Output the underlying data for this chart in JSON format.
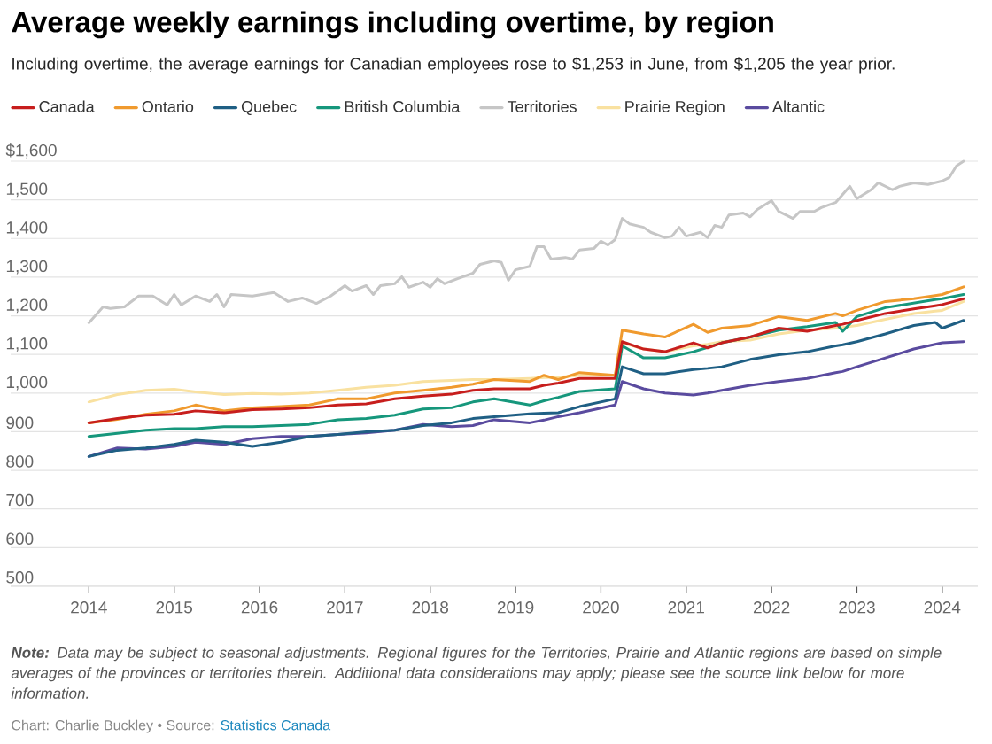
{
  "chart_data": {
    "type": "line",
    "title": "Average weekly earnings including overtime, by region",
    "subtitle": "Including overtime, the average earnings for Canadian employees rose to $1,253 in June, from $1,205 the year prior.",
    "x": [
      "2014-01",
      "2014-05",
      "2014-09",
      "2015-01",
      "2015-04",
      "2015-08",
      "2015-12",
      "2016-04",
      "2016-08",
      "2016-12",
      "2017-04",
      "2017-08",
      "2017-12",
      "2018-04",
      "2018-07",
      "2018-10",
      "2019-03",
      "2019-05",
      "2019-07",
      "2019-10",
      "2020-03",
      "2020-04",
      "2020-07",
      "2020-10",
      "2021-02",
      "2021-04",
      "2021-06",
      "2021-10",
      "2022-02",
      "2022-06",
      "2022-10",
      "2022-11",
      "2023-01",
      "2023-05",
      "2023-09",
      "2023-12",
      "2024-01",
      "2024-04"
    ],
    "series": [
      {
        "name": "Canada",
        "color": "#c71e1d",
        "values": [
          923,
          934,
          943,
          945,
          954,
          949,
          957,
          959,
          962,
          969,
          972,
          985,
          992,
          997,
          1007,
          1011,
          1011,
          1020,
          1026,
          1038,
          1038,
          1133,
          1114,
          1107,
          1130,
          1117,
          1130,
          1145,
          1168,
          1160,
          1175,
          1178,
          1188,
          1206,
          1218,
          1226,
          1229,
          1244
        ]
      },
      {
        "name": "Ontario",
        "color": "#f09a2e",
        "values": [
          923,
          932,
          945,
          954,
          969,
          954,
          962,
          965,
          969,
          985,
          985,
          1000,
          1007,
          1015,
          1023,
          1035,
          1030,
          1046,
          1035,
          1053,
          1046,
          1163,
          1153,
          1145,
          1178,
          1157,
          1168,
          1175,
          1198,
          1188,
          1206,
          1200,
          1214,
          1237,
          1244,
          1252,
          1255,
          1275
        ]
      },
      {
        "name": "Quebec",
        "color": "#1f5f84",
        "values": [
          836,
          852,
          858,
          867,
          878,
          873,
          862,
          873,
          888,
          893,
          900,
          904,
          916,
          923,
          934,
          939,
          946,
          948,
          949,
          965,
          985,
          1068,
          1050,
          1050,
          1061,
          1064,
          1068,
          1087,
          1099,
          1107,
          1122,
          1125,
          1133,
          1153,
          1175,
          1183,
          1168,
          1188
        ]
      },
      {
        "name": "British Columbia",
        "color": "#16977c",
        "values": [
          888,
          896,
          904,
          908,
          908,
          913,
          913,
          916,
          919,
          931,
          934,
          943,
          959,
          962,
          977,
          985,
          969,
          980,
          989,
          1004,
          1011,
          1122,
          1091,
          1091,
          1107,
          1118,
          1130,
          1145,
          1163,
          1172,
          1183,
          1160,
          1198,
          1221,
          1233,
          1242,
          1244,
          1255
        ]
      },
      {
        "name": "Territories",
        "color": "#c6c6c6",
        "x": [
          "2014-01",
          "2014-03",
          "2014-04",
          "2014-06",
          "2014-08",
          "2014-10",
          "2014-12",
          "2015-01",
          "2015-02",
          "2015-04",
          "2015-06",
          "2015-07",
          "2015-08",
          "2015-09",
          "2015-12",
          "2016-03",
          "2016-05",
          "2016-07",
          "2016-09",
          "2016-11",
          "2017-01",
          "2017-02",
          "2017-04",
          "2017-05",
          "2017-06",
          "2017-08",
          "2017-09",
          "2017-10",
          "2017-12",
          "2018-01",
          "2018-02",
          "2018-03",
          "2018-05",
          "2018-07",
          "2018-08",
          "2018-10",
          "2018-11",
          "2018-12",
          "2019-01",
          "2019-03",
          "2019-04",
          "2019-05",
          "2019-06",
          "2019-08",
          "2019-09",
          "2019-10",
          "2019-12",
          "2020-01",
          "2020-02",
          "2020-03",
          "2020-04",
          "2020-05",
          "2020-07",
          "2020-08",
          "2020-10",
          "2020-11",
          "2020-12",
          "2021-01",
          "2021-03",
          "2021-04",
          "2021-05",
          "2021-06",
          "2021-07",
          "2021-09",
          "2021-10",
          "2021-11",
          "2022-01",
          "2022-02",
          "2022-04",
          "2022-05",
          "2022-07",
          "2022-08",
          "2022-10",
          "2022-12",
          "2023-01",
          "2023-03",
          "2023-04",
          "2023-06",
          "2023-07",
          "2023-09",
          "2023-11",
          "2024-01",
          "2024-02",
          "2024-03",
          "2024-04"
        ],
        "values": [
          1182,
          1223,
          1219,
          1223,
          1251,
          1251,
          1228,
          1255,
          1228,
          1251,
          1237,
          1255,
          1223,
          1255,
          1251,
          1260,
          1237,
          1246,
          1232,
          1251,
          1278,
          1264,
          1278,
          1255,
          1278,
          1283,
          1301,
          1274,
          1287,
          1274,
          1296,
          1283,
          1297,
          1310,
          1333,
          1342,
          1338,
          1292,
          1319,
          1328,
          1379,
          1379,
          1347,
          1351,
          1347,
          1370,
          1374,
          1393,
          1383,
          1397,
          1452,
          1438,
          1429,
          1416,
          1402,
          1406,
          1429,
          1406,
          1416,
          1402,
          1434,
          1429,
          1461,
          1466,
          1456,
          1475,
          1498,
          1470,
          1452,
          1470,
          1470,
          1480,
          1493,
          1535,
          1503,
          1526,
          1544,
          1526,
          1535,
          1544,
          1540,
          1549,
          1558,
          1588,
          1600
        ]
      },
      {
        "name": "Prairie Region",
        "color": "#f9e1a0",
        "values": [
          977,
          996,
          1007,
          1010,
          1003,
          996,
          999,
          997,
          1000,
          1007,
          1015,
          1020,
          1030,
          1033,
          1035,
          1035,
          1038,
          1040,
          1041,
          1046,
          1046,
          1130,
          1114,
          1107,
          1122,
          1126,
          1133,
          1137,
          1153,
          1163,
          1168,
          1170,
          1175,
          1191,
          1206,
          1212,
          1214,
          1237
        ]
      },
      {
        "name": "Altantic",
        "color": "#5a4b9f",
        "values": [
          836,
          858,
          855,
          862,
          873,
          867,
          882,
          888,
          888,
          893,
          897,
          904,
          919,
          913,
          916,
          931,
          923,
          930,
          939,
          949,
          969,
          1030,
          1011,
          1000,
          995,
          1000,
          1007,
          1020,
          1030,
          1038,
          1053,
          1056,
          1068,
          1091,
          1114,
          1126,
          1130,
          1133
        ]
      }
    ],
    "xlim": [
      "2013-02",
      "2024-06"
    ],
    "xticks": [
      "2014",
      "2015",
      "2016",
      "2017",
      "2018",
      "2019",
      "2020",
      "2021",
      "2022",
      "2023",
      "2024"
    ],
    "ylim": [
      500,
      1600
    ],
    "yticks": [
      500,
      600,
      700,
      800,
      900,
      {
        "value": 1000,
        "label": "1,000"
      },
      {
        "value": 1100,
        "label": "1,100"
      },
      {
        "value": 1200,
        "label": "1,200"
      },
      {
        "value": 1300,
        "label": "1,300"
      },
      {
        "value": 1400,
        "label": "1,400"
      },
      {
        "value": 1500,
        "label": "1,500"
      },
      {
        "value": 1600,
        "label": "$1,600"
      }
    ],
    "grid": "y",
    "legend": "top left",
    "marker": "none",
    "line_style": "solid",
    "annotations": [
      "**Note:** Data may be subject to seasonal adjustments. Regional figures for the Territories, Prairie and Atlantic regions are based on simple averages of the provinces or territories therein. Additional data considerations may apply; please see the source link below for more information.",
      "Chart: Charlie Buckley • Source:",
      "Statistics Canada"
    ]
  }
}
